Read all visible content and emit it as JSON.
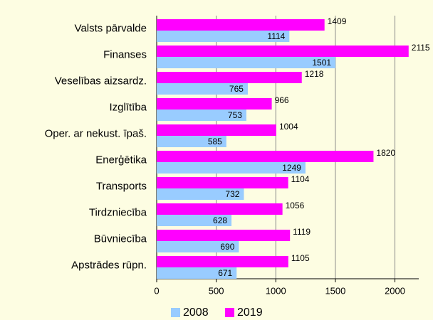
{
  "chart_data": {
    "type": "bar",
    "orientation": "horizontal",
    "categories": [
      "Valsts pārvalde",
      "Finanses",
      "Veselības aizsardz.",
      "Izglītība",
      "Oper. ar nekust. īpaš.",
      "Enerģētika",
      "Transports",
      "Tirdzniecība",
      "Būvniecība",
      "Apstrādes rūpn."
    ],
    "series": [
      {
        "name": "2008",
        "color": "#99ccff",
        "values": [
          1114,
          1501,
          765,
          753,
          585,
          1249,
          732,
          628,
          690,
          671
        ]
      },
      {
        "name": "2019",
        "color": "#ff00ff",
        "values": [
          1409,
          2115,
          1218,
          966,
          1004,
          1820,
          1104,
          1056,
          1119,
          1105
        ]
      }
    ],
    "xlim": [
      0,
      2200
    ],
    "xticks": [
      0,
      500,
      1000,
      1500,
      2000
    ],
    "grid": true,
    "legend": "bottom"
  }
}
